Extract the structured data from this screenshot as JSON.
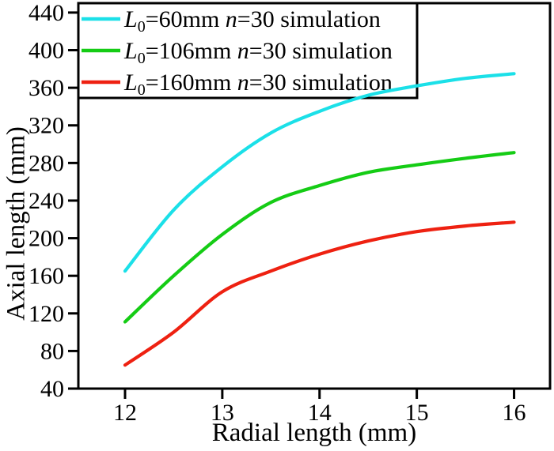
{
  "figure": {
    "background": "#ffffff",
    "axis_color": "#000000"
  },
  "chart_data": {
    "type": "line",
    "title": "",
    "xlabel": "Radial length (mm)",
    "ylabel": "Axial length (mm)",
    "xlim": [
      11.52,
      16.37
    ],
    "ylim": [
      40,
      450
    ],
    "x_ticks": [
      12,
      13,
      14,
      15,
      16
    ],
    "y_ticks": [
      40,
      80,
      120,
      160,
      200,
      240,
      280,
      320,
      360,
      400,
      440
    ],
    "grid": false,
    "legend_position": "top-left",
    "x": [
      12,
      12.5,
      13,
      13.5,
      14,
      14.5,
      15,
      15.5,
      16
    ],
    "series": [
      {
        "name": "L0=60mm n=30 simulation",
        "color": "#1be0e8",
        "values": [
          165,
          230,
          276,
          312,
          335,
          352,
          362,
          370,
          375
        ],
        "label_parts": [
          {
            "t": "L",
            "s": "i"
          },
          {
            "t": "0",
            "s": "sub"
          },
          {
            "t": "=60mm ",
            "s": "r"
          },
          {
            "t": "n",
            "s": "i"
          },
          {
            "t": "=30 simulation",
            "s": "r"
          }
        ]
      },
      {
        "name": "L0=106mm n=30 simulation",
        "color": "#15cc15",
        "values": [
          111,
          160,
          204,
          238,
          256,
          270,
          278,
          285,
          291
        ],
        "label_parts": [
          {
            "t": "L",
            "s": "i"
          },
          {
            "t": "0",
            "s": "sub"
          },
          {
            "t": "=106mm ",
            "s": "r"
          },
          {
            "t": "n",
            "s": "i"
          },
          {
            "t": "=30 simulation",
            "s": "r"
          }
        ]
      },
      {
        "name": "L0=160mm n=30 simulation",
        "color": "#ee2111",
        "values": [
          65,
          100,
          143,
          165,
          183,
          197,
          207,
          213,
          217
        ],
        "label_parts": [
          {
            "t": "L",
            "s": "i"
          },
          {
            "t": "0",
            "s": "sub"
          },
          {
            "t": "=160mm ",
            "s": "r"
          },
          {
            "t": "n",
            "s": "i"
          },
          {
            "t": "=30 simulation",
            "s": "r"
          }
        ]
      }
    ]
  }
}
